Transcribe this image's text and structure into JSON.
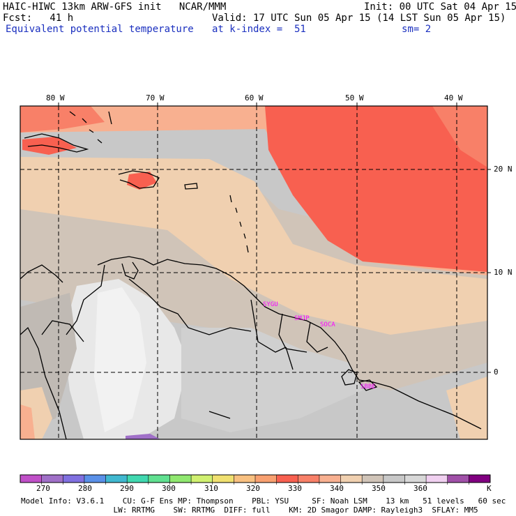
{
  "header": {
    "line1_left": "HAIC-HIWC 13km ARW-GFS init   NCAR/MMM",
    "line1_right": "Init: 00 UTC Sat 04 Apr 15",
    "fcst_label": "Fcst:   41 h",
    "valid_text": "Valid: 17 UTC Sun 05 Apr 15 (14 LST Sun 05 Apr 15)",
    "field_name": "Equivalent potential temperature",
    "level_text": "at k-index =  51",
    "smoothing_text": "sm= 2"
  },
  "map": {
    "lon_labels": [
      "80 W",
      "70 W",
      "60 W",
      "50 W",
      "40 W"
    ],
    "lat_labels": [
      "20 N",
      "10 N",
      "0"
    ],
    "stations": [
      "SYGU",
      "SMJP",
      "SOCA",
      "SBBE"
    ],
    "station_color": "#ff00ff",
    "grid_color": "#000000"
  },
  "colorbar": {
    "colors": [
      "#c050c8",
      "#a070c8",
      "#8070e0",
      "#5a90e8",
      "#40b8d0",
      "#40d8b0",
      "#60e090",
      "#90e870",
      "#d0f070",
      "#f0e070",
      "#f8c080",
      "#f8a070",
      "#f86050",
      "#f88068",
      "#f8b090",
      "#f0d0b0",
      "#d0c4b8",
      "#c8c8c8",
      "#d8d8d8",
      "#f0d0f0",
      "#a050a8",
      "#800080"
    ],
    "labels": [
      "270",
      "280",
      "290",
      "300",
      "310",
      "320",
      "330",
      "340",
      "350",
      "360",
      "K"
    ]
  },
  "model_info": {
    "line1": "Model Info: V3.6.1    CU: G-F Ens MP: Thompson    PBL: YSU     SF: Noah LSM    13 km   51 levels   60 sec",
    "line2": "                    LW: RRTMG    SW: RRTMG  DIFF: full    KM: 2D Smagor DAMP: Rayleigh3  SFLAY: MM5"
  }
}
